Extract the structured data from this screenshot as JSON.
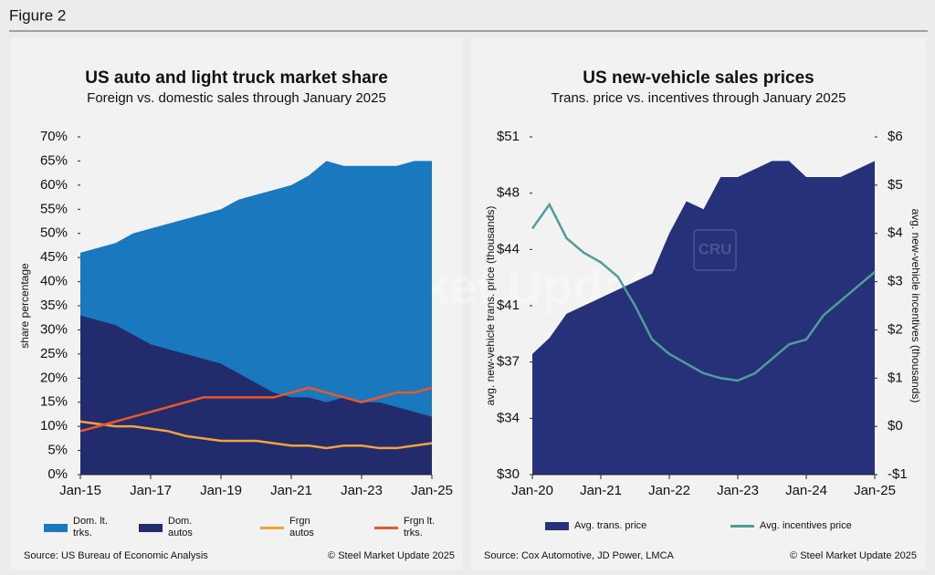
{
  "header": {
    "title": "Figure 2"
  },
  "chart_data": [
    {
      "type": "area",
      "title": "US auto and light truck market share",
      "subtitle": "Foreign vs. domestic sales through January 2025",
      "y_label": "share percentage",
      "watermark": "Steel Market Update",
      "source": "Source: US Bureau of Economic Analysis",
      "copyright": "© Steel Market Update 2025",
      "categories": [
        "Jan-15",
        null,
        null,
        null,
        "Jan-17",
        null,
        null,
        null,
        "Jan-19",
        null,
        null,
        null,
        "Jan-21",
        null,
        null,
        null,
        "Jan-23",
        null,
        null,
        null,
        "Jan-25"
      ],
      "ylim": [
        0,
        70
      ],
      "yticks": [
        {
          "value": 0,
          "label": "0%"
        },
        {
          "value": 5,
          "label": "5%"
        },
        {
          "value": 10,
          "label": "10%"
        },
        {
          "value": 15,
          "label": "15%"
        },
        {
          "value": 20,
          "label": "20%"
        },
        {
          "value": 25,
          "label": "25%"
        },
        {
          "value": 30,
          "label": "30%"
        },
        {
          "value": 35,
          "label": "35%"
        },
        {
          "value": 40,
          "label": "40%"
        },
        {
          "value": 45,
          "label": "45%"
        },
        {
          "value": 50,
          "label": "50%"
        },
        {
          "value": 55,
          "label": "55%"
        },
        {
          "value": 60,
          "label": "60%"
        },
        {
          "value": 65,
          "label": "65%"
        },
        {
          "value": 70,
          "label": "70%"
        }
      ],
      "series": [
        {
          "name": "Dom. lt. trks.",
          "style": "area",
          "color": "#1a78bf",
          "values": [
            46,
            47,
            48,
            50,
            51,
            52,
            53,
            54,
            55,
            57,
            58,
            59,
            60,
            62,
            65,
            64,
            64,
            64,
            64,
            65,
            65
          ]
        },
        {
          "name": "Dom. autos",
          "style": "area",
          "color": "#222c6d",
          "values": [
            33,
            32,
            31,
            29,
            27,
            26,
            25,
            24,
            23,
            21,
            19,
            17,
            16,
            16,
            15,
            16,
            15,
            15,
            14,
            13,
            12
          ]
        },
        {
          "name": "Frgn autos",
          "style": "line",
          "color": "#f4a23c",
          "values": [
            11,
            10.5,
            10,
            10,
            9.5,
            9,
            8,
            7.5,
            7,
            7,
            7,
            6.5,
            6,
            6,
            5.5,
            6,
            6,
            5.5,
            5.5,
            6,
            6.5
          ]
        },
        {
          "name": "Frgn lt. trks.",
          "style": "line",
          "color": "#e8582b",
          "values": [
            9,
            10,
            11,
            12,
            13,
            14,
            15,
            16,
            16,
            16,
            16,
            16,
            17,
            18,
            17,
            16,
            15,
            16,
            17,
            17,
            18
          ]
        }
      ]
    },
    {
      "type": "area",
      "title": "US new-vehicle sales prices",
      "subtitle": "Trans. price vs. incentives through January 2025",
      "y_label": "avg. new-vehicle trans. price (thousands)",
      "y2_label": "avg. new-vehicle incentives (thousands)",
      "watermark": "CRU",
      "source": "Source: Cox Automotive, JD Power, LMCA",
      "copyright": "© Steel Market Update 2025",
      "categories": [
        "Jan-20",
        null,
        null,
        null,
        "Jan-21",
        null,
        null,
        null,
        "Jan-22",
        null,
        null,
        null,
        "Jan-23",
        null,
        null,
        null,
        "Jan-24",
        null,
        null,
        null,
        "Jan-25"
      ],
      "ylim": [
        30,
        51
      ],
      "yticks": [
        {
          "value": 30,
          "label": "$30"
        },
        {
          "value": 33.5,
          "label": "$34"
        },
        {
          "value": 37,
          "label": "$37"
        },
        {
          "value": 40.5,
          "label": "$41"
        },
        {
          "value": 44,
          "label": "$44"
        },
        {
          "value": 47.5,
          "label": "$48"
        },
        {
          "value": 51,
          "label": "$51"
        }
      ],
      "y2lim": [
        -1,
        6
      ],
      "y2ticks": [
        {
          "value": -1,
          "label": "-$1"
        },
        {
          "value": 0,
          "label": "$0"
        },
        {
          "value": 1,
          "label": "$1"
        },
        {
          "value": 2,
          "label": "$2"
        },
        {
          "value": 3,
          "label": "$3"
        },
        {
          "value": 4,
          "label": "$4"
        },
        {
          "value": 5,
          "label": "$5"
        },
        {
          "value": 6,
          "label": "$6"
        }
      ],
      "series": [
        {
          "name": "Avg. trans. price",
          "style": "area",
          "color": "#27317a",
          "values": [
            37.5,
            38.5,
            40,
            40.5,
            41,
            41.5,
            42,
            42.5,
            45,
            47,
            46.5,
            48.5,
            48.5,
            49,
            49.5,
            49.5,
            48.5,
            48.5,
            48.5,
            49,
            49.5
          ]
        },
        {
          "name": "Avg. incentives price",
          "style": "line",
          "axis": "y2",
          "color": "#4f9c9a",
          "values": [
            4.1,
            4.6,
            3.9,
            3.6,
            3.4,
            3.1,
            2.5,
            1.8,
            1.5,
            1.3,
            1.1,
            1.0,
            0.95,
            1.1,
            1.4,
            1.7,
            1.8,
            2.3,
            2.6,
            2.9,
            3.2
          ]
        }
      ]
    }
  ]
}
